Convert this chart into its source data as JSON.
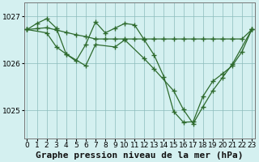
{
  "title": "Graphe pression niveau de la mer (hPa)",
  "bg_color": "#d4f0f0",
  "grid_color": "#8bbcbc",
  "line_color": "#2d6a2d",
  "ylim": [
    1024.4,
    1027.3
  ],
  "xlim": [
    -0.3,
    23.3
  ],
  "yticks": [
    1025,
    1026,
    1027
  ],
  "xticks": [
    0,
    1,
    2,
    3,
    4,
    5,
    6,
    7,
    8,
    9,
    10,
    11,
    12,
    13,
    14,
    15,
    16,
    17,
    18,
    19,
    20,
    21,
    22,
    23
  ],
  "lines": [
    {
      "x": [
        0,
        1,
        2,
        3,
        4,
        5,
        6,
        7,
        8,
        9,
        10,
        11,
        12,
        13,
        14,
        15,
        16,
        17,
        18,
        19,
        20,
        21,
        22,
        23
      ],
      "y": [
        1026.72,
        1026.74,
        1026.76,
        1026.71,
        1026.66,
        1026.61,
        1026.57,
        1026.52,
        1026.52,
        1026.52,
        1026.52,
        1026.52,
        1026.52,
        1026.52,
        1026.52,
        1026.52,
        1026.52,
        1026.52,
        1026.52,
        1026.52,
        1026.52,
        1026.52,
        1026.52,
        1026.72
      ]
    },
    {
      "x": [
        0,
        1,
        2,
        3,
        4,
        5,
        6,
        7,
        8,
        9,
        10,
        11,
        12,
        13,
        14,
        15,
        16,
        17,
        18,
        19,
        20,
        21,
        22,
        23
      ],
      "y": [
        1026.72,
        1026.85,
        1026.95,
        1026.75,
        1026.2,
        1026.05,
        1026.4,
        1026.88,
        1026.65,
        1026.75,
        1026.85,
        1026.82,
        1026.5,
        1026.18,
        1025.72,
        1024.98,
        1024.75,
        1024.76,
        1025.3,
        1025.62,
        1025.78,
        1025.95,
        1026.25,
        1026.72
      ]
    },
    {
      "x": [
        0,
        2,
        3,
        4,
        6,
        7,
        9,
        10,
        12,
        13,
        15,
        16,
        17,
        18,
        19,
        20,
        21,
        23
      ],
      "y": [
        1026.72,
        1026.65,
        1026.35,
        1026.2,
        1025.95,
        1026.4,
        1026.35,
        1026.5,
        1026.1,
        1025.88,
        1025.42,
        1025.02,
        1024.72,
        1025.08,
        1025.42,
        1025.7,
        1025.98,
        1026.72
      ]
    }
  ],
  "xlabel_fontsize": 8,
  "tick_fontsize": 6.5
}
